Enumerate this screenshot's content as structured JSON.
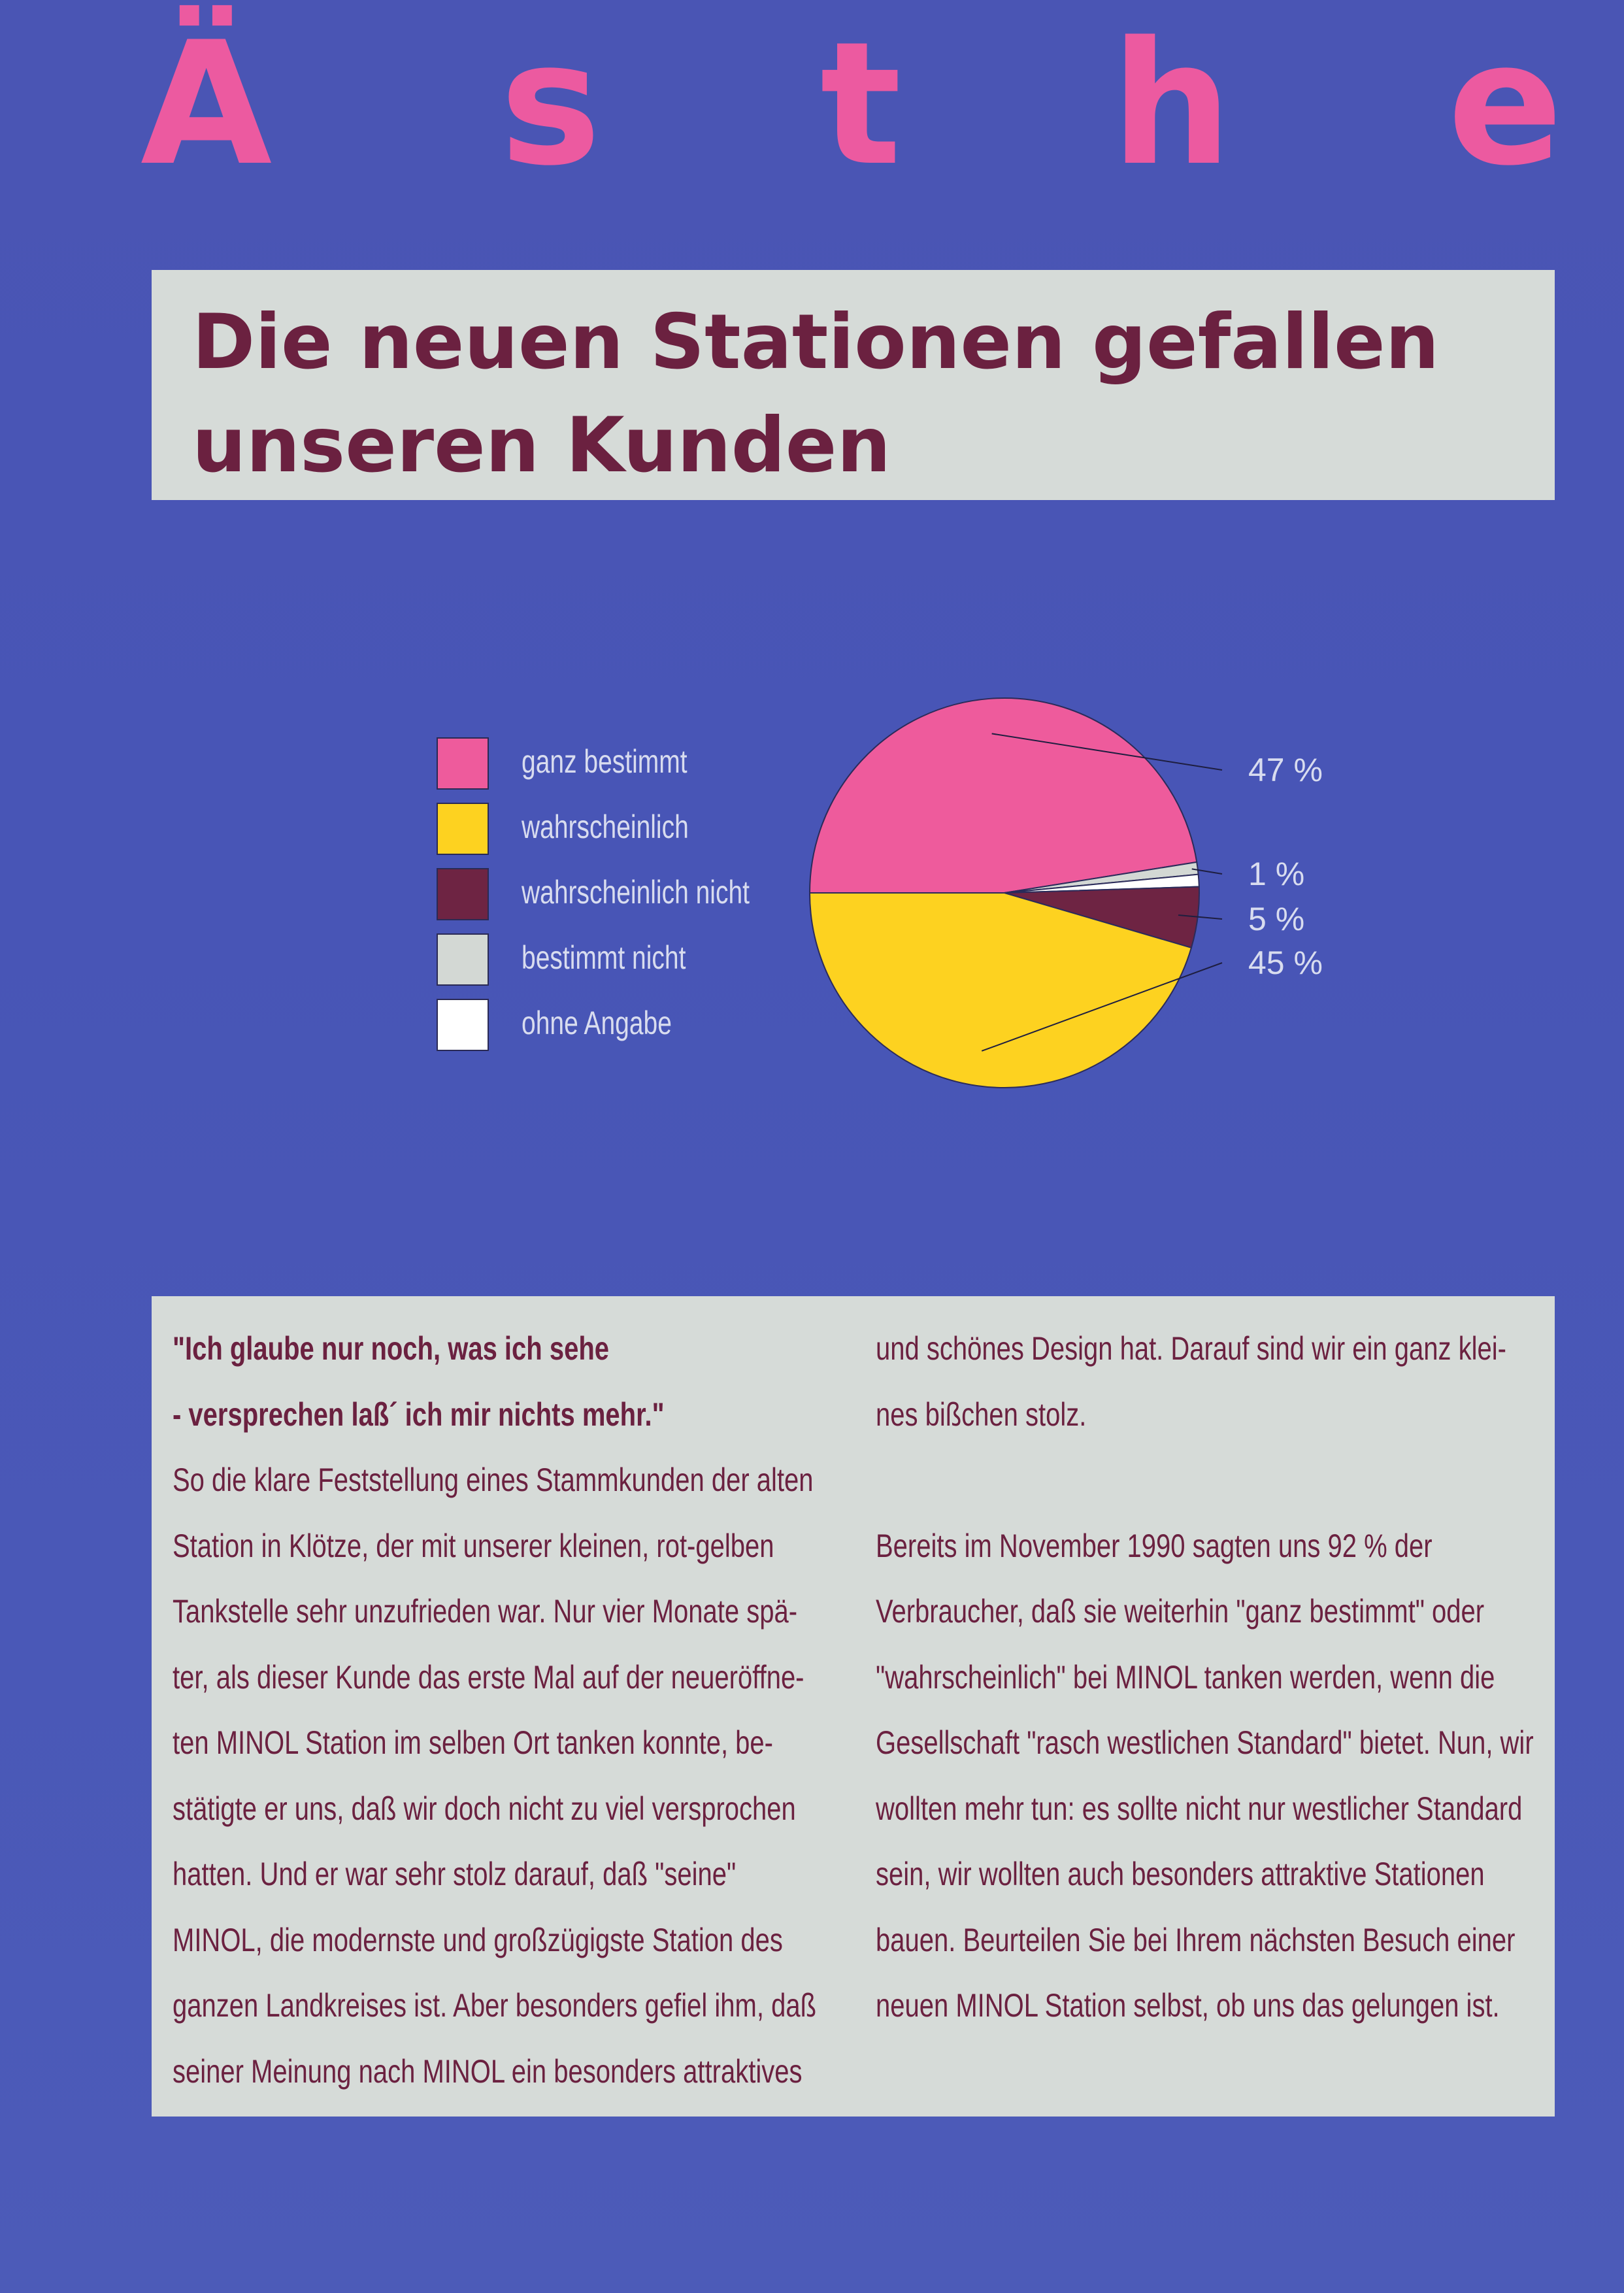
{
  "header": {
    "letters": [
      "Ä",
      "s",
      "t",
      "h",
      "e"
    ],
    "color": "#ec5aa0"
  },
  "title": "Die neuen Stationen gefallen unseren Kunden",
  "chart_data": {
    "type": "pie",
    "title": "",
    "legend": [
      {
        "label": "ganz bestimmt",
        "color": "#ee5b9c"
      },
      {
        "label": "wahrscheinlich",
        "color": "#fdd220"
      },
      {
        "label": "wahrscheinlich nicht",
        "color": "#6e2443"
      },
      {
        "label": "bestimmt nicht",
        "color": "#d3d8d4"
      },
      {
        "label": "ohne Angabe",
        "color": "#ffffff"
      }
    ],
    "slices": [
      {
        "label": "ganz bestimmt",
        "value": 47,
        "data_label": "47 %",
        "color": "#ee5b9c"
      },
      {
        "label": "bestimmt nicht",
        "value": 1,
        "data_label": "1 %",
        "color": "#d3d8d4"
      },
      {
        "label": "ohne Angabe",
        "value": 1,
        "data_label": "",
        "color": "#ffffff"
      },
      {
        "label": "wahrscheinlich nicht",
        "value": 5,
        "data_label": "5 %",
        "color": "#6e2443"
      },
      {
        "label": "wahrscheinlich",
        "value": 45,
        "data_label": "45 %",
        "color": "#fdd220"
      }
    ]
  },
  "article": {
    "quote_lines": [
      "\"Ich glaube nur noch, was ich sehe",
      "- versprechen laß´ ich mir nichts mehr.\""
    ],
    "left_lines": [
      "So die klare Feststellung eines Stammkunden der alten",
      "Station in Klötze, der mit unserer kleinen, rot-gelben",
      "Tankstelle sehr unzufrieden war. Nur vier Monate spä-",
      "ter, als dieser Kunde das erste Mal auf der neueröffne-",
      "ten MINOL Station im selben Ort tanken konnte, be-",
      "stätigte er uns, daß wir doch nicht zu viel versprochen",
      "hatten. Und er war sehr stolz darauf, daß \"seine\"",
      "MINOL, die modernste und großzügigste Station des",
      "ganzen Landkreises ist.  Aber besonders gefiel ihm, daß",
      "seiner Meinung nach MINOL ein besonders attraktives"
    ],
    "right_lines_1": [
      "und schönes Design hat. Darauf sind wir ein ganz klei-",
      "nes bißchen stolz."
    ],
    "right_lines_2": [
      "Bereits im November 1990 sagten uns 92 % der",
      "Verbraucher, daß sie weiterhin \"ganz bestimmt\" oder",
      "\"wahrscheinlich\" bei MINOL tanken werden, wenn die",
      "Gesellschaft \"rasch westlichen Standard\" bietet. Nun, wir",
      "wollten mehr tun: es sollte nicht nur westlicher Standard",
      "sein, wir wollten auch besonders attraktive Stationen",
      "bauen. Beurteilen Sie bei Ihrem nächsten Besuch einer",
      "neuen MINOL Station selbst, ob uns das gelungen ist."
    ]
  }
}
